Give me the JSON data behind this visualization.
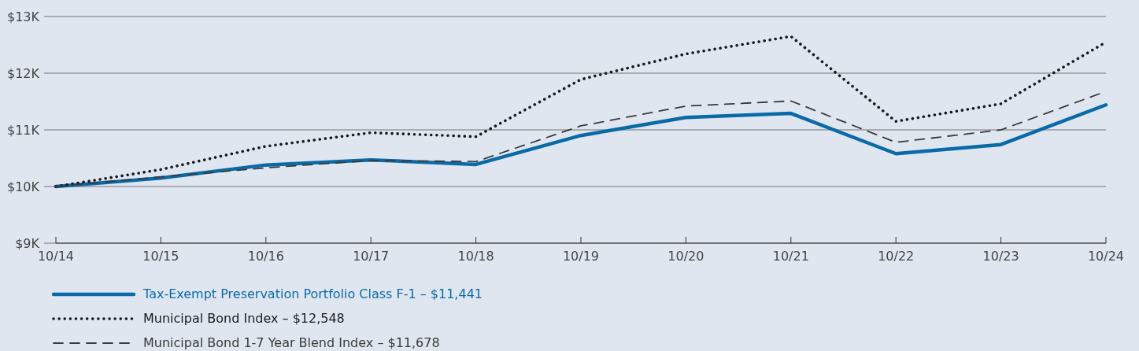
{
  "chart_data": {
    "type": "line",
    "categories": [
      "10/14",
      "10/15",
      "10/16",
      "10/17",
      "10/18",
      "10/19",
      "10/20",
      "10/21",
      "10/22",
      "10/23",
      "10/24"
    ],
    "series": [
      {
        "name": "Tax-Exempt Preservation Portfolio Class F-1 – $11,441",
        "color": "#0a6aa8",
        "line_style": "solid",
        "values": [
          10000,
          10150,
          10380,
          10470,
          10390,
          10900,
          11220,
          11290,
          10580,
          10740,
          11441
        ]
      },
      {
        "name": "Municipal Bond Index – $12,548",
        "color": "#1a1a1a",
        "line_style": "dotted",
        "values": [
          10000,
          10300,
          10710,
          10950,
          10880,
          11890,
          12340,
          12650,
          11150,
          11460,
          12548
        ]
      },
      {
        "name": "Municipal Bond 1-7 Year Blend Index – $11,678",
        "color": "#3a3a3a",
        "line_style": "dashed",
        "values": [
          10000,
          10170,
          10330,
          10460,
          10440,
          11070,
          11420,
          11510,
          10780,
          11000,
          11678
        ]
      }
    ],
    "ylim": [
      9000,
      13000
    ],
    "yticks": [
      {
        "value": 9000,
        "label": "$9K"
      },
      {
        "value": 10000,
        "label": "$10K"
      },
      {
        "value": 11000,
        "label": "$11K"
      },
      {
        "value": 12000,
        "label": "$12K"
      },
      {
        "value": 13000,
        "label": "$13K"
      }
    ],
    "grid": "y",
    "legend": "bottom"
  }
}
